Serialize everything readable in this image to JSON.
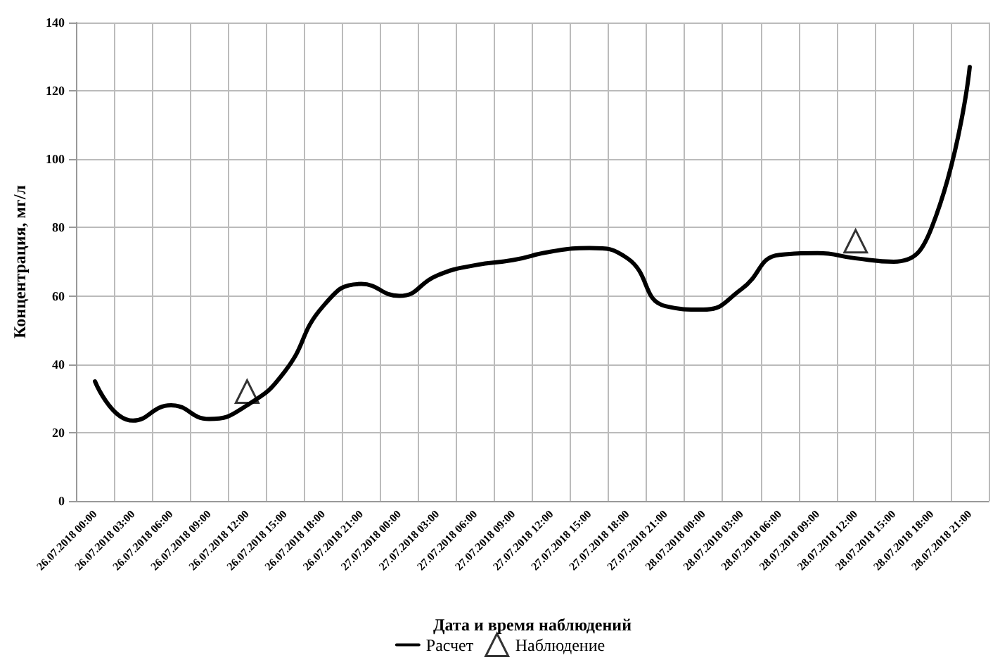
{
  "chart_data": {
    "type": "line",
    "xlabel": "Дата и время наблюдений",
    "ylabel": "Концентрация, мг/л",
    "categories": [
      "26.07.2018 00:00",
      "26.07.2018 03:00",
      "26.07.2018 06:00",
      "26.07.2018 09:00",
      "26.07.2018 12:00",
      "26.07.2018 15:00",
      "26.07.2018 18:00",
      "26.07.2018 21:00",
      "27.07.2018 00:00",
      "27.07.2018 03:00",
      "27.07.2018 06:00",
      "27.07.2018 09:00",
      "27.07.2018 12:00",
      "27.07.2018 15:00",
      "27.07.2018 18:00",
      "27.07.2018 21:00",
      "28.07.2018 00:00",
      "28.07.2018 03:00",
      "28.07.2018 06:00",
      "28.07.2018 09:00",
      "28.07.2018 12:00",
      "28.07.2018 15:00",
      "28.07.2018 18:00",
      "28.07.2018 21:00"
    ],
    "series": [
      {
        "name": "Расчет",
        "color": "#000000",
        "marker": "none",
        "values": [
          35,
          23.5,
          28,
          24,
          28,
          38,
          57,
          63.5,
          60,
          66,
          69,
          70.5,
          73,
          74,
          71,
          57,
          56,
          62,
          72,
          72.5,
          71,
          70,
          80,
          127
        ]
      },
      {
        "name": "Наблюдение",
        "type": "scatter",
        "color": "#000000",
        "marker": "triangle",
        "values": [
          null,
          null,
          null,
          null,
          32,
          null,
          null,
          null,
          null,
          null,
          null,
          null,
          null,
          null,
          null,
          null,
          null,
          null,
          null,
          null,
          76,
          null,
          null,
          null
        ]
      }
    ],
    "ylim": [
      0,
      140
    ],
    "yticks": [
      0,
      20,
      40,
      60,
      80,
      100,
      120,
      140
    ],
    "grid": true,
    "legend": "bottom"
  }
}
